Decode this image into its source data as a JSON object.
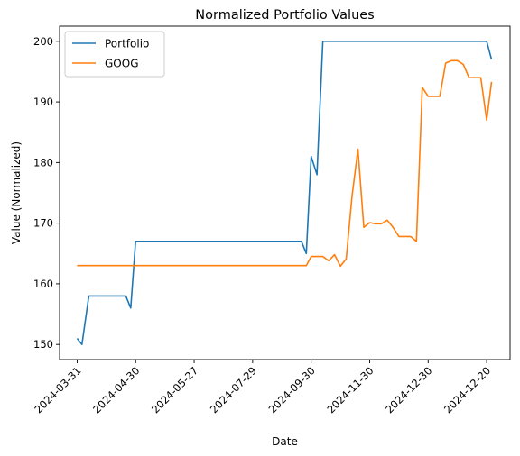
{
  "chart_data": {
    "type": "line",
    "title": "Normalized Portfolio Values",
    "xlabel": "Date",
    "ylabel": "Value (Normalized)",
    "x_ticks": [
      {
        "index": 0,
        "label": "2024-03-31"
      },
      {
        "index": 6,
        "label": "2024-04-30"
      },
      {
        "index": 12,
        "label": "2024-05-27"
      },
      {
        "index": 18,
        "label": "2024-07-29"
      },
      {
        "index": 24,
        "label": "2024-09-30"
      },
      {
        "index": 30,
        "label": "2024-11-30"
      },
      {
        "index": 36,
        "label": "2024-12-30"
      },
      {
        "index": 42,
        "label": "2024-12-20"
      }
    ],
    "x_range": [
      -1.8,
      44.4
    ],
    "y_ticks": [
      150,
      160,
      170,
      180,
      190,
      200
    ],
    "ylim": [
      147.5,
      202.5
    ],
    "legend_position": "top-left",
    "grid": false,
    "series": [
      {
        "name": "Portfolio",
        "color": "#1f77b4",
        "x": [
          0,
          0.5,
          1.2,
          2,
          3,
          4,
          5,
          5.5,
          6,
          7,
          8,
          9,
          10,
          11,
          12,
          13,
          14,
          15,
          16,
          17,
          18,
          19,
          20,
          21,
          22,
          23,
          23.5,
          24,
          24.6,
          25.2,
          26,
          27,
          28,
          29,
          30,
          31,
          32,
          33,
          34,
          35,
          36,
          37,
          38,
          39,
          40,
          41,
          42,
          42.5
        ],
        "values": [
          151,
          150,
          158,
          158,
          158,
          158,
          158,
          156,
          167,
          167,
          167,
          167,
          167,
          167,
          167,
          167,
          167,
          167,
          167,
          167,
          167,
          167,
          167,
          167,
          167,
          167,
          165,
          181,
          178,
          200,
          200,
          200,
          200,
          200,
          200,
          200,
          200,
          200,
          200,
          200,
          200,
          200,
          200,
          200,
          200,
          200,
          200,
          197
        ]
      },
      {
        "name": "GOOG",
        "color": "#ff7f0e",
        "x": [
          0,
          1,
          2,
          3,
          4,
          5,
          6,
          7,
          8,
          9,
          10,
          11,
          12,
          13,
          14,
          15,
          16,
          17,
          18,
          19,
          20,
          21,
          22,
          23,
          23.5,
          24,
          24.6,
          25.2,
          25.8,
          26.4,
          27,
          27.6,
          28.2,
          28.8,
          29.4,
          30,
          30.6,
          31.2,
          31.8,
          32.4,
          33,
          33.6,
          34.2,
          34.8,
          35.4,
          36,
          36.6,
          37.2,
          37.8,
          38.4,
          39,
          39.6,
          40.2,
          40.8,
          41.4,
          42,
          42.5
        ],
        "values": [
          163,
          163,
          163,
          163,
          163,
          163,
          163,
          163,
          163,
          163,
          163,
          163,
          163,
          163,
          163,
          163,
          163,
          163,
          163,
          163,
          163,
          163,
          163,
          163,
          163,
          164.5,
          164.5,
          164.5,
          163.8,
          164.8,
          162.9,
          164.1,
          174.5,
          182.2,
          169.3,
          170.1,
          169.9,
          169.9,
          170.5,
          169.3,
          167.8,
          167.8,
          167.8,
          167,
          192.4,
          190.9,
          190.9,
          190.9,
          196.4,
          196.8,
          196.8,
          196.2,
          194,
          194,
          194,
          187,
          193.3
        ]
      }
    ]
  }
}
